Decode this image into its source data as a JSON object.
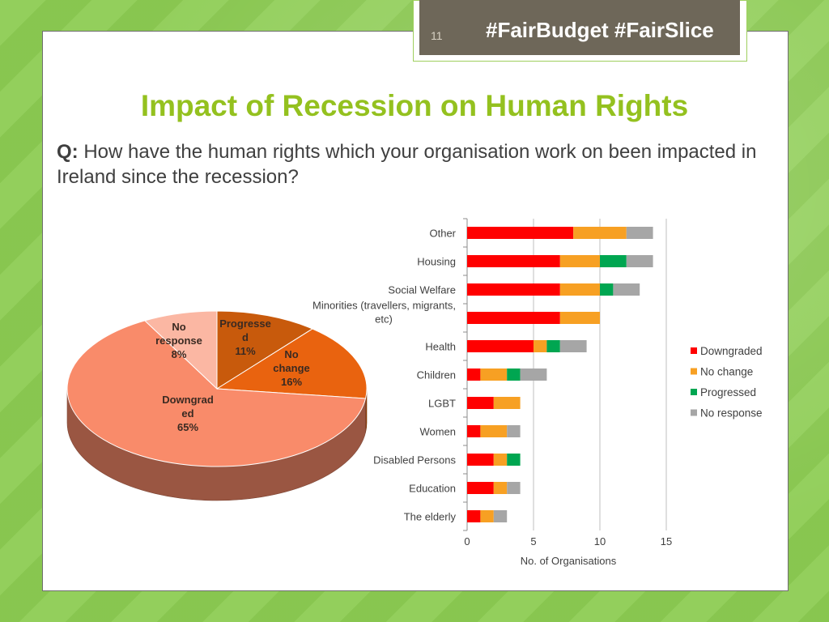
{
  "slide": {
    "number": "11",
    "hashtags": "#FairBudget #FairSlice",
    "title": "Impact of Recession on Human Rights",
    "question_label": "Q:",
    "question": "How have the human rights which your organisation work on been impacted in Ireland since the recession?"
  },
  "chart_data": [
    {
      "type": "pie",
      "style": "3d",
      "slices": [
        {
          "label": "Progressed",
          "display_lines": [
            "Progresse",
            "d",
            "11%"
          ],
          "value": 11,
          "color": "#c85a0c"
        },
        {
          "label": "No change",
          "display_lines": [
            "No",
            "change",
            "16%"
          ],
          "value": 16,
          "color": "#e9630f"
        },
        {
          "label": "Downgraded",
          "display_lines": [
            "Downgrad",
            "ed",
            "65%"
          ],
          "value": 65,
          "color": "#f98b6a"
        },
        {
          "label": "No response",
          "display_lines": [
            "No",
            "response",
            "8%"
          ],
          "value": 8,
          "color": "#fbb7a3"
        }
      ]
    },
    {
      "type": "bar",
      "orientation": "horizontal",
      "stacked": true,
      "categories": [
        "Other",
        "Housing",
        "Social Welfare",
        "Minorities (travellers, migrants, etc)",
        "Health",
        "Children",
        "LGBT",
        "Women",
        "Disabled Persons",
        "Education",
        "The elderly"
      ],
      "category_lines": [
        [
          "Other"
        ],
        [
          "Housing"
        ],
        [
          "Social Welfare"
        ],
        [
          "Minorities (travellers, migrants,",
          "etc)"
        ],
        [
          "Health"
        ],
        [
          "Children"
        ],
        [
          "LGBT"
        ],
        [
          "Women"
        ],
        [
          "Disabled Persons"
        ],
        [
          "Education"
        ],
        [
          "The elderly"
        ]
      ],
      "series": [
        {
          "name": "Downgraded",
          "color": "#ff0000",
          "values": [
            8,
            7,
            7,
            7,
            5,
            1,
            2,
            1,
            2,
            2,
            1
          ]
        },
        {
          "name": "No change",
          "color": "#f7a023",
          "values": [
            4,
            3,
            3,
            3,
            1,
            2,
            2,
            2,
            1,
            1,
            1
          ]
        },
        {
          "name": "Progressed",
          "color": "#00a651",
          "values": [
            0,
            2,
            1,
            0,
            1,
            1,
            0,
            0,
            1,
            0,
            0
          ]
        },
        {
          "name": "No response",
          "color": "#a6a6a6",
          "values": [
            2,
            2,
            2,
            0,
            2,
            2,
            0,
            1,
            0,
            1,
            1
          ]
        }
      ],
      "xlim": [
        0,
        15
      ],
      "xticks": [
        0,
        5,
        10,
        15
      ],
      "xlabel": "No. of Organisations",
      "grid": true,
      "legend": "right"
    }
  ]
}
